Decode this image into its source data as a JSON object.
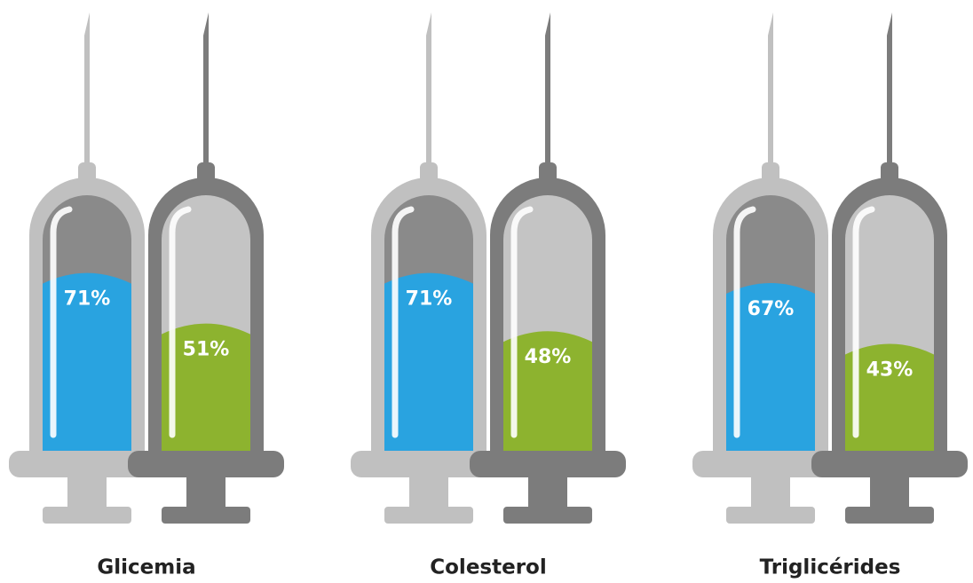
{
  "chart_data": {
    "type": "syringe",
    "categories": [
      "Glicemia",
      "Colesterol",
      "Triglicérides"
    ],
    "ylim": [
      0,
      100
    ],
    "series": [
      {
        "color": "#29a3e0",
        "values": [
          71,
          71,
          67
        ],
        "value_labels": [
          "71%",
          "71%",
          "67%"
        ]
      },
      {
        "color": "#8db32f",
        "values": [
          51,
          48,
          43
        ],
        "value_labels": [
          "51%",
          "48%",
          "43%"
        ]
      }
    ]
  }
}
